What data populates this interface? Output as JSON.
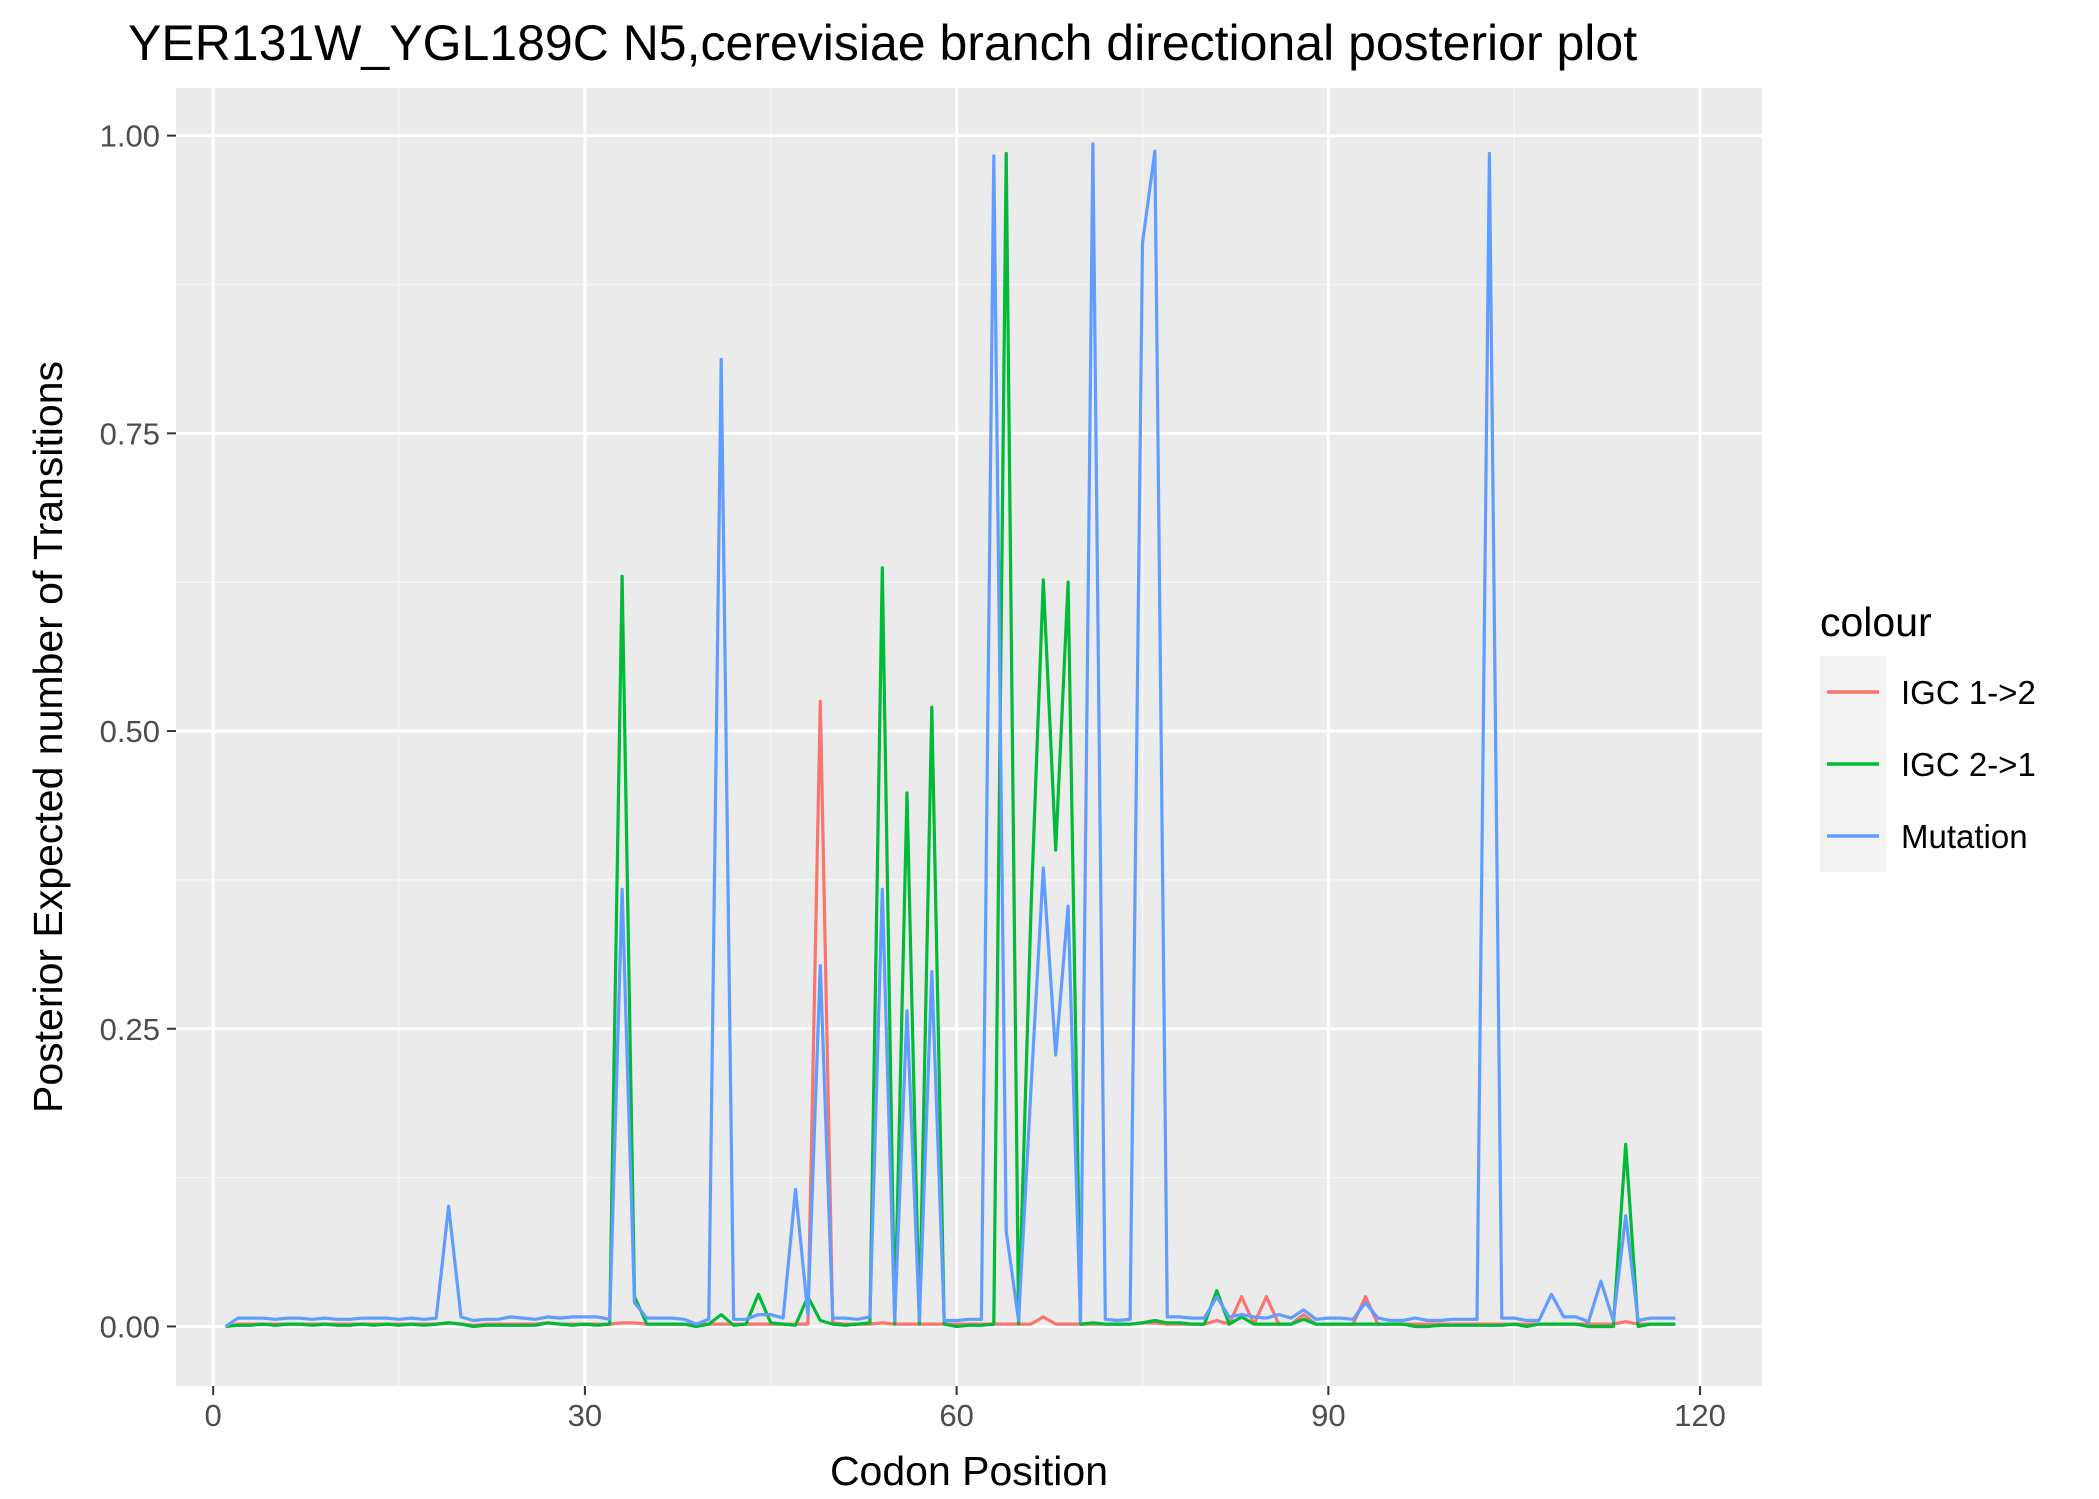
{
  "chart_data": {
    "type": "line",
    "title": "YER131W_YGL189C N5,cerevisiae branch directional posterior plot",
    "xlabel": "Codon Position",
    "ylabel": "Posterior Expected number of Transitions",
    "xlim": [
      -3,
      125
    ],
    "ylim": [
      -0.05,
      1.04
    ],
    "x_ticks": [
      0,
      30,
      60,
      90,
      120
    ],
    "x_tick_labels": [
      "0",
      "30",
      "60",
      "90",
      "120"
    ],
    "y_ticks": [
      0,
      0.25,
      0.5,
      0.75,
      1.0
    ],
    "y_tick_labels": [
      "0.00",
      "0.25",
      "0.50",
      "0.75",
      "1.00"
    ],
    "grid": true,
    "legend_title": "colour",
    "legend_position": "right",
    "x": [
      1,
      2,
      3,
      4,
      5,
      6,
      7,
      8,
      9,
      10,
      11,
      12,
      13,
      14,
      15,
      16,
      17,
      18,
      19,
      20,
      21,
      22,
      23,
      24,
      25,
      26,
      27,
      28,
      29,
      30,
      31,
      32,
      33,
      34,
      35,
      36,
      37,
      38,
      39,
      40,
      41,
      42,
      43,
      44,
      45,
      46,
      47,
      48,
      49,
      50,
      51,
      52,
      53,
      54,
      55,
      56,
      57,
      58,
      59,
      60,
      61,
      62,
      63,
      64,
      65,
      66,
      67,
      68,
      69,
      70,
      71,
      72,
      73,
      74,
      75,
      76,
      77,
      78,
      79,
      80,
      81,
      82,
      83,
      84,
      85,
      86,
      87,
      88,
      89,
      90,
      91,
      92,
      93,
      94,
      95,
      96,
      97,
      98,
      99,
      100,
      101,
      102,
      103,
      104,
      105,
      106,
      107,
      108,
      109,
      110,
      111,
      112,
      113,
      114,
      115,
      116,
      117,
      118
    ],
    "series": [
      {
        "name": "IGC 1->2",
        "color": "#F8766D",
        "values": [
          0.0,
          0.002,
          0.002,
          0.002,
          0.002,
          0.002,
          0.002,
          0.002,
          0.002,
          0.002,
          0.002,
          0.002,
          0.002,
          0.002,
          0.002,
          0.002,
          0.002,
          0.002,
          0.003,
          0.002,
          0.001,
          0.002,
          0.002,
          0.002,
          0.002,
          0.002,
          0.003,
          0.002,
          0.002,
          0.002,
          0.002,
          0.002,
          0.003,
          0.003,
          0.002,
          0.002,
          0.002,
          0.002,
          0.002,
          0.002,
          0.002,
          0.002,
          0.002,
          0.002,
          0.002,
          0.002,
          0.002,
          0.002,
          0.525,
          0.003,
          0.002,
          0.002,
          0.002,
          0.003,
          0.002,
          0.002,
          0.002,
          0.002,
          0.002,
          0.002,
          0.002,
          0.002,
          0.002,
          0.002,
          0.002,
          0.002,
          0.008,
          0.002,
          0.002,
          0.002,
          0.002,
          0.002,
          0.002,
          0.002,
          0.003,
          0.003,
          0.002,
          0.002,
          0.002,
          0.002,
          0.005,
          0.002,
          0.025,
          0.002,
          0.025,
          0.002,
          0.002,
          0.01,
          0.002,
          0.002,
          0.002,
          0.002,
          0.025,
          0.002,
          0.002,
          0.002,
          0.002,
          0.002,
          0.002,
          0.002,
          0.002,
          0.002,
          0.002,
          0.002,
          0.002,
          0.002,
          0.002,
          0.002,
          0.002,
          0.002,
          0.002,
          0.002,
          0.002,
          0.004,
          0.002,
          0.002,
          0.002,
          0.002
        ]
      },
      {
        "name": "IGC 2->1",
        "color": "#00BA38",
        "values": [
          0.0,
          0.001,
          0.001,
          0.002,
          0.001,
          0.002,
          0.002,
          0.001,
          0.002,
          0.001,
          0.001,
          0.002,
          0.001,
          0.002,
          0.001,
          0.002,
          0.001,
          0.002,
          0.003,
          0.002,
          0.0,
          0.001,
          0.001,
          0.001,
          0.001,
          0.001,
          0.003,
          0.002,
          0.001,
          0.002,
          0.001,
          0.002,
          0.63,
          0.025,
          0.002,
          0.002,
          0.002,
          0.002,
          0.0,
          0.002,
          0.01,
          0.001,
          0.002,
          0.027,
          0.003,
          0.002,
          0.001,
          0.025,
          0.005,
          0.002,
          0.001,
          0.002,
          0.003,
          0.637,
          0.002,
          0.448,
          0.002,
          0.52,
          0.002,
          0.0,
          0.001,
          0.001,
          0.002,
          0.985,
          0.002,
          0.35,
          0.627,
          0.4,
          0.625,
          0.002,
          0.003,
          0.002,
          0.002,
          0.002,
          0.003,
          0.005,
          0.003,
          0.003,
          0.002,
          0.002,
          0.03,
          0.002,
          0.008,
          0.002,
          0.002,
          0.002,
          0.002,
          0.006,
          0.002,
          0.002,
          0.002,
          0.002,
          0.002,
          0.002,
          0.002,
          0.002,
          0.0,
          0.0,
          0.001,
          0.001,
          0.001,
          0.001,
          0.001,
          0.001,
          0.002,
          0.0,
          0.002,
          0.002,
          0.002,
          0.002,
          0.0,
          0.0,
          0.0,
          0.153,
          0.0,
          0.002,
          0.002,
          0.002
        ]
      },
      {
        "name": "Mutation",
        "color": "#619CFF",
        "values": [
          0.0,
          0.007,
          0.007,
          0.007,
          0.006,
          0.007,
          0.007,
          0.006,
          0.007,
          0.006,
          0.006,
          0.007,
          0.007,
          0.007,
          0.006,
          0.007,
          0.006,
          0.007,
          0.101,
          0.008,
          0.005,
          0.006,
          0.006,
          0.008,
          0.007,
          0.006,
          0.008,
          0.007,
          0.008,
          0.008,
          0.008,
          0.006,
          0.367,
          0.02,
          0.007,
          0.007,
          0.007,
          0.006,
          0.002,
          0.006,
          0.812,
          0.006,
          0.006,
          0.01,
          0.01,
          0.007,
          0.115,
          0.01,
          0.303,
          0.007,
          0.007,
          0.006,
          0.008,
          0.367,
          0.005,
          0.265,
          0.005,
          0.298,
          0.005,
          0.005,
          0.006,
          0.006,
          0.983,
          0.08,
          0.005,
          0.2,
          0.385,
          0.228,
          0.353,
          0.004,
          0.993,
          0.006,
          0.005,
          0.006,
          0.91,
          0.987,
          0.008,
          0.008,
          0.007,
          0.007,
          0.025,
          0.008,
          0.01,
          0.008,
          0.007,
          0.01,
          0.007,
          0.014,
          0.006,
          0.007,
          0.007,
          0.006,
          0.02,
          0.007,
          0.005,
          0.005,
          0.007,
          0.005,
          0.005,
          0.006,
          0.006,
          0.006,
          0.985,
          0.007,
          0.007,
          0.005,
          0.005,
          0.027,
          0.008,
          0.008,
          0.004,
          0.038,
          0.005,
          0.093,
          0.005,
          0.007,
          0.007,
          0.007
        ]
      }
    ]
  }
}
